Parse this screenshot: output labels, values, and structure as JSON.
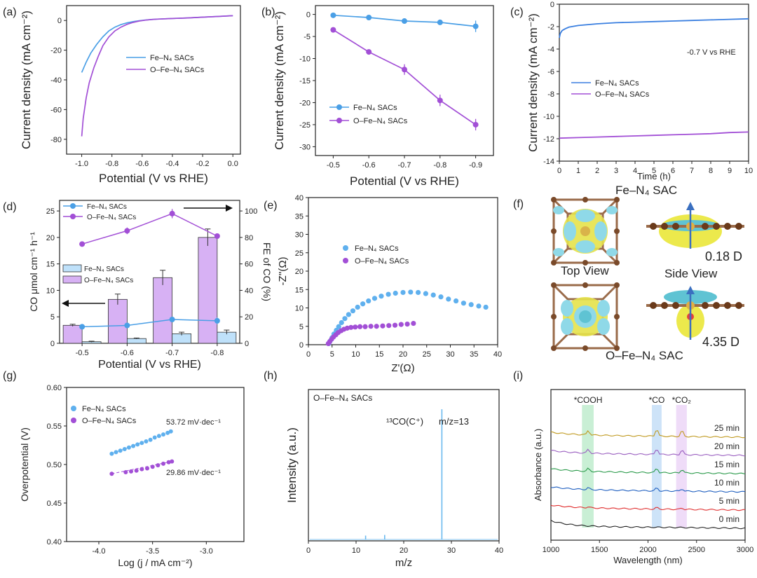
{
  "colors": {
    "blue": "#4a9fe6",
    "purple": "#a24fd6",
    "barBlue": "#bfe1fa",
    "barPurple": "#d7b1f4",
    "black": "#222222"
  },
  "chart_data": [
    {
      "id": "a",
      "type": "line",
      "panel_label": "(a)",
      "xlabel": "Potential (V vs RHE)",
      "ylabel": "Current density (mA cm⁻²)",
      "xlim": [
        -1.1,
        0.05
      ],
      "ylim": [
        -90,
        10
      ],
      "xticks": [
        -1.0,
        -0.8,
        -0.6,
        -0.4,
        -0.2,
        0.0
      ],
      "xtick_labels": [
        "-1.0",
        "-0.8",
        "-0.6",
        "-0.4",
        "-0.2",
        "0.0"
      ],
      "yticks": [
        0,
        -20,
        -40,
        -60,
        -80
      ],
      "ytick_labels": [
        "0",
        "-20",
        "-40",
        "-60",
        "-80"
      ],
      "series": [
        {
          "name": "Fe–N₄ SACs",
          "color": "#4a9fe6",
          "x": [
            -1.0,
            -0.97,
            -0.94,
            -0.9,
            -0.86,
            -0.82,
            -0.78,
            -0.74,
            -0.7,
            -0.66,
            -0.62,
            -0.58,
            -0.54,
            -0.5,
            -0.4,
            -0.3,
            -0.2,
            -0.1,
            0.0
          ],
          "y": [
            -35,
            -28,
            -22,
            -16,
            -11,
            -7,
            -4.5,
            -2.8,
            -1.6,
            -0.8,
            -0.2,
            0.3,
            0.6,
            0.9,
            1.3,
            1.7,
            2.2,
            2.7,
            3.2
          ]
        },
        {
          "name": "O–Fe–N₄ SACs",
          "color": "#a24fd6",
          "x": [
            -1.0,
            -0.99,
            -0.97,
            -0.95,
            -0.92,
            -0.89,
            -0.86,
            -0.82,
            -0.78,
            -0.74,
            -0.7,
            -0.66,
            -0.62,
            -0.58,
            -0.54,
            -0.5,
            -0.4,
            -0.3,
            -0.2,
            -0.1,
            0.0
          ],
          "y": [
            -78,
            -66,
            -52,
            -42,
            -32,
            -24,
            -17,
            -11,
            -7,
            -4.5,
            -2.6,
            -1.3,
            -0.4,
            0.2,
            0.6,
            0.9,
            1.3,
            1.7,
            2.2,
            2.7,
            3.2
          ]
        }
      ]
    },
    {
      "id": "b",
      "type": "line",
      "panel_label": "(b)",
      "xlabel": "Potential (V vs RHE)",
      "ylabel": "Current density (mA cm⁻²)",
      "xlim": [
        -0.45,
        -0.95
      ],
      "ylim": [
        -32,
        2
      ],
      "xticks": [
        -0.5,
        -0.6,
        -0.7,
        -0.8,
        -0.9
      ],
      "xtick_labels": [
        "-0.5",
        "-0.6",
        "-0.7",
        "-0.8",
        "-0.9"
      ],
      "yticks": [
        0,
        -5,
        -10,
        -15,
        -20,
        -25,
        -30
      ],
      "ytick_labels": [
        "0",
        "-5",
        "-10",
        "-15",
        "-20",
        "-25",
        "-30"
      ],
      "series": [
        {
          "name": "Fe–N₄ SACs",
          "color": "#4a9fe6",
          "x": [
            -0.5,
            -0.6,
            -0.7,
            -0.8,
            -0.9
          ],
          "y": [
            -0.2,
            -0.7,
            -1.5,
            -1.8,
            -2.7
          ],
          "err": [
            0.2,
            0.2,
            0.3,
            0.5,
            1.3
          ]
        },
        {
          "name": "O–Fe–N₄ SACs",
          "color": "#a24fd6",
          "x": [
            -0.5,
            -0.6,
            -0.7,
            -0.8,
            -0.9
          ],
          "y": [
            -3.5,
            -8.5,
            -12.5,
            -19.5,
            -25
          ],
          "err": [
            0.3,
            0.5,
            1.2,
            1.3,
            1.3
          ]
        }
      ]
    },
    {
      "id": "c",
      "type": "line",
      "panel_label": "(c)",
      "xlabel": "Time (h)",
      "ylabel": "Current density (mA cm⁻²)",
      "annotation": "-0.7 V vs RHE",
      "xlim": [
        0,
        10
      ],
      "ylim": [
        -14,
        0
      ],
      "xticks": [
        0,
        1,
        2,
        3,
        4,
        5,
        6,
        7,
        8,
        9,
        10
      ],
      "xtick_labels": [
        "0",
        "1",
        "2",
        "3",
        "4",
        "5",
        "6",
        "7",
        "8",
        "9",
        "10"
      ],
      "yticks": [
        0,
        -2,
        -4,
        -6,
        -8,
        -10,
        -12,
        -14
      ],
      "ytick_labels": [
        "0",
        "-2",
        "-4",
        "-6",
        "-8",
        "-10",
        "-12",
        "-14"
      ],
      "series": [
        {
          "name": "Fe–N₄ SACs",
          "color": "#3a7fe0",
          "x": [
            0,
            0.05,
            0.15,
            0.3,
            0.5,
            1,
            2,
            3,
            4,
            5,
            6,
            7,
            8,
            9,
            10
          ],
          "y": [
            -3.0,
            -2.6,
            -2.35,
            -2.2,
            -2.05,
            -1.9,
            -1.75,
            -1.65,
            -1.6,
            -1.55,
            -1.5,
            -1.45,
            -1.4,
            -1.35,
            -1.3
          ]
        },
        {
          "name": "O–Fe–N₄ SACs",
          "color": "#a24fd6",
          "x": [
            0,
            1,
            2,
            3,
            4,
            5,
            6,
            7,
            8,
            9,
            10
          ],
          "y": [
            -11.95,
            -11.9,
            -11.85,
            -11.8,
            -11.75,
            -11.7,
            -11.65,
            -11.6,
            -11.55,
            -11.45,
            -11.4
          ]
        }
      ]
    },
    {
      "id": "d",
      "type": "bar",
      "panel_label": "(d)",
      "xlabel": "Potential (V vs RHE)",
      "ylabel": "CO μmol cm⁻¹ h⁻¹",
      "ylabel_right": "FE of CO (%)",
      "categories": [
        "-0.5",
        "-0.6",
        "-0.7",
        "-0.8"
      ],
      "ylim": [
        0,
        27
      ],
      "ylim_right": [
        0,
        108
      ],
      "yticks": [
        0,
        5,
        10,
        15,
        20,
        25
      ],
      "ytick_labels": [
        "0",
        "5",
        "10",
        "15",
        "20",
        "25"
      ],
      "yticks_right": [
        0,
        20,
        40,
        60,
        80,
        100
      ],
      "ytick_labels_right": [
        "0",
        "20",
        "40",
        "60",
        "80",
        "100"
      ],
      "bars": [
        {
          "name": "Fe–N₄ SACs",
          "color": "#bfe1fa",
          "values": [
            0.3,
            0.9,
            1.8,
            2.1
          ],
          "err": [
            0.1,
            0.1,
            0.3,
            0.4
          ]
        },
        {
          "name": "O–Fe–N₄ SACs",
          "color": "#d7b1f4",
          "values": [
            3.4,
            8.3,
            12.4,
            20.0
          ],
          "err": [
            0.2,
            1.0,
            1.4,
            1.6
          ]
        }
      ],
      "series": [
        {
          "name": "Fe–N₄ SACs",
          "color": "#4a9fe6",
          "values": [
            12.5,
            13.5,
            18,
            17
          ],
          "err": [
            1.2,
            1.2,
            2,
            2.5
          ]
        },
        {
          "name": "O–Fe–N₄ SACs",
          "color": "#a24fd6",
          "values": [
            75,
            85,
            98,
            81
          ],
          "err": [
            2,
            2.5,
            3.5,
            2
          ]
        }
      ]
    },
    {
      "id": "e",
      "type": "scatter",
      "panel_label": "(e)",
      "xlabel": "Z'(Ω)",
      "ylabel": "-Z''(Ω)",
      "xlim": [
        0,
        40
      ],
      "ylim": [
        0,
        40
      ],
      "xticks": [
        0,
        5,
        10,
        15,
        20,
        25,
        30,
        35,
        40
      ],
      "xtick_labels": [
        "0",
        "5",
        "10",
        "15",
        "20",
        "25",
        "30",
        "35",
        "40"
      ],
      "yticks": [
        0,
        5,
        10,
        15,
        20,
        25,
        30,
        35,
        40
      ],
      "ytick_labels": [
        "0",
        "5",
        "10",
        "15",
        "20",
        "25",
        "30",
        "35",
        "40"
      ],
      "series": [
        {
          "name": "Fe–N₄ SACs",
          "color": "#5fb0ee",
          "x": [
            4.3,
            4.6,
            5.0,
            5.4,
            5.9,
            6.4,
            7.0,
            7.7,
            8.5,
            9.4,
            10.4,
            11.5,
            12.7,
            14.0,
            15.4,
            16.9,
            18.4,
            20.0,
            21.6,
            23.2,
            24.8,
            26.4,
            28.0,
            29.6,
            31.2,
            32.8,
            34.4,
            36.0,
            37.5
          ],
          "y": [
            0.3,
            1.0,
            1.9,
            2.9,
            3.9,
            4.9,
            6.0,
            7.1,
            8.2,
            9.2,
            10.2,
            11.1,
            11.9,
            12.6,
            13.2,
            13.7,
            14.0,
            14.2,
            14.3,
            14.2,
            13.9,
            13.5,
            13.0,
            12.4,
            11.9,
            11.3,
            10.9,
            10.5,
            10.2
          ]
        },
        {
          "name": "O–Fe–N₄ SACs",
          "color": "#a24fd6",
          "x": [
            4.2,
            4.5,
            4.9,
            5.3,
            5.8,
            6.3,
            6.9,
            7.5,
            8.2,
            9.0,
            9.9,
            10.9,
            12.0,
            13.2,
            14.4,
            15.7,
            17.0,
            18.3,
            19.6,
            20.9,
            22.2
          ],
          "y": [
            0.3,
            0.8,
            1.5,
            2.1,
            2.7,
            3.3,
            3.8,
            4.2,
            4.5,
            4.7,
            4.8,
            4.9,
            4.9,
            5.0,
            5.0,
            5.1,
            5.2,
            5.3,
            5.5,
            5.6,
            5.8
          ]
        }
      ]
    },
    {
      "id": "g",
      "type": "scatter",
      "panel_label": "(g)",
      "xlabel": "Log (j / mA cm⁻²)",
      "ylabel": "Overpotential (V)",
      "xlim": [
        -4.3,
        -2.65
      ],
      "ylim": [
        0.4,
        0.6
      ],
      "xticks": [
        -4.0,
        -3.5,
        -3.0
      ],
      "xtick_labels": [
        "-4.0",
        "-3.5",
        "-3.0"
      ],
      "yticks": [
        0.4,
        0.45,
        0.5,
        0.55,
        0.6
      ],
      "ytick_labels": [
        "0.40",
        "0.45",
        "0.50",
        "0.55",
        "0.60"
      ],
      "slope_labels": [
        "53.72 mV·dec⁻¹",
        "29.86 mV·dec⁻¹"
      ],
      "series": [
        {
          "name": "Fe–N₄ SACs",
          "color": "#5fb0ee",
          "x": [
            -3.88,
            -3.84,
            -3.8,
            -3.76,
            -3.72,
            -3.68,
            -3.64,
            -3.6,
            -3.56,
            -3.52,
            -3.48,
            -3.44,
            -3.4,
            -3.36,
            -3.33
          ],
          "y": [
            0.514,
            0.516,
            0.518,
            0.52,
            0.522,
            0.524,
            0.526,
            0.528,
            0.53,
            0.532,
            0.535,
            0.537,
            0.539,
            0.541,
            0.543
          ]
        },
        {
          "name": "O–Fe–N₄ SACs",
          "color": "#a24fd6",
          "x": [
            -3.88,
            -3.75,
            -3.7,
            -3.65,
            -3.6,
            -3.55,
            -3.5,
            -3.45,
            -3.4,
            -3.35,
            -3.32
          ],
          "y": [
            0.488,
            0.49,
            0.491,
            0.492,
            0.494,
            0.495,
            0.497,
            0.499,
            0.501,
            0.503,
            0.504
          ]
        }
      ]
    },
    {
      "id": "h",
      "type": "bar",
      "panel_label": "(h)",
      "legend_text": "O–Fe–N₄ SACs",
      "peak_label": "¹³CO(C⁺)",
      "peak_mz": "m/z=13",
      "xlabel": "m/z",
      "ylabel": "Intensity (a.u.)",
      "xlim": [
        0,
        40
      ],
      "ylim": [
        0,
        1.15
      ],
      "xticks": [
        0,
        10,
        20,
        30,
        40
      ],
      "xtick_labels": [
        "0",
        "10",
        "20",
        "30",
        "40"
      ],
      "x": [
        12,
        16,
        28,
        29.4
      ],
      "values": [
        0.04,
        0.045,
        1.0,
        0.01
      ]
    },
    {
      "id": "i",
      "type": "line",
      "panel_label": "(i)",
      "xlabel": "Wavelength (nm)",
      "ylabel": "Absorbance (a.u.)",
      "xlim": [
        1000,
        3000
      ],
      "xticks": [
        1000,
        1500,
        2000,
        2500,
        3000
      ],
      "xtick_labels": [
        "1000",
        "1500",
        "2000",
        "2500",
        "3000"
      ],
      "bands": [
        {
          "label": "*COOH",
          "from": 1320,
          "to": 1440,
          "color": "#b7eac7"
        },
        {
          "label": "*CO",
          "from": 2040,
          "to": 2140,
          "color": "#bcdaf6"
        },
        {
          "label": "*CO₂",
          "from": 2290,
          "to": 2400,
          "color": "#ead0f5"
        }
      ],
      "series": [
        {
          "name": "0 min",
          "color": "#222222",
          "offset": 0
        },
        {
          "name": "5 min",
          "color": "#e03030",
          "offset": 1
        },
        {
          "name": "10 min",
          "color": "#1f5fc0",
          "offset": 2
        },
        {
          "name": "15 min",
          "color": "#2a9a4a",
          "offset": 3
        },
        {
          "name": "20 min",
          "color": "#9a5fc0",
          "offset": 4
        },
        {
          "name": "25 min",
          "color": "#c09a20",
          "offset": 5
        }
      ]
    }
  ],
  "panels": {
    "d": {
      "legend_bars": [
        "Fe–N₄ SACs",
        "O–Fe–N₄ SACs"
      ]
    },
    "f": {
      "label": "(f)",
      "title_top": "Fe–N₄ SAC",
      "title_bottom": "O–Fe–N₄ SAC",
      "top_view": "Top View",
      "side_view": "Side View",
      "dipole_1": "0.18 D",
      "dipole_2": "4.35 D"
    }
  }
}
